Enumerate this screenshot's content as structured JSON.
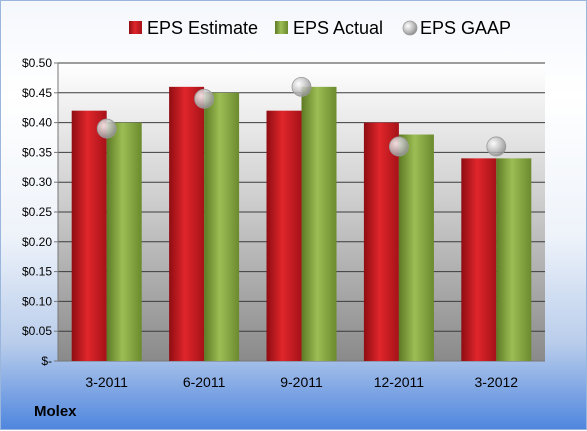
{
  "company": "Molex",
  "colors": {
    "estimate": "#c8171e",
    "actual": "#7f9f3c",
    "gaap": "#b4b4b4"
  },
  "chart_data": {
    "type": "bar",
    "categories": [
      "3-2011",
      "6-2011",
      "9-2011",
      "12-2011",
      "3-2012"
    ],
    "series": [
      {
        "name": "EPS Estimate",
        "kind": "bar",
        "values": [
          0.42,
          0.46,
          0.42,
          0.4,
          0.34
        ]
      },
      {
        "name": "EPS Actual",
        "kind": "bar",
        "values": [
          0.4,
          0.45,
          0.46,
          0.38,
          0.34
        ]
      },
      {
        "name": "EPS GAAP",
        "kind": "marker",
        "values": [
          0.39,
          0.44,
          0.46,
          0.36,
          0.36
        ]
      }
    ],
    "yticks": [
      "$-",
      "$0.05",
      "$0.10",
      "$0.15",
      "$0.20",
      "$0.25",
      "$0.30",
      "$0.35",
      "$0.40",
      "$0.45",
      "$0.50"
    ],
    "ylim": [
      0,
      0.5
    ],
    "grid": true,
    "legend_position": "top"
  }
}
